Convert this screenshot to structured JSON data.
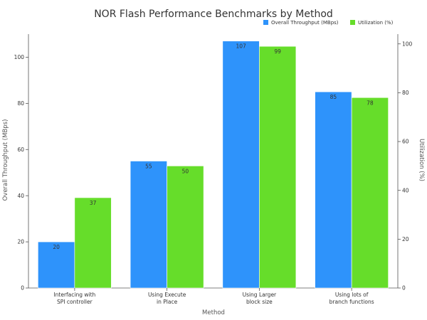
{
  "chart_data": {
    "type": "bar",
    "title": "NOR Flash Performance Benchmarks by Method",
    "xlabel": "Method",
    "ylabel": "Overall Throughput (MBps)",
    "y2label": "Utilization (%)",
    "categories": [
      [
        "Interfacing with",
        "SPI controller"
      ],
      [
        "Using Execute",
        "in Place"
      ],
      [
        "Using Larger",
        "block size"
      ],
      [
        "Using lots of",
        "branch functions"
      ]
    ],
    "series": [
      {
        "name": "Overall Throughput (MBps)",
        "axis": "left",
        "color": "#2e93fb",
        "values": [
          20,
          55,
          107,
          85
        ]
      },
      {
        "name": "Utilization (%)",
        "axis": "right",
        "color": "#66dd2a",
        "values": [
          37,
          50,
          99,
          78
        ]
      }
    ],
    "ylim": [
      0,
      110
    ],
    "y2lim": [
      0,
      104
    ],
    "yticks": [
      0,
      20,
      40,
      60,
      80,
      100
    ],
    "y2ticks": [
      0,
      20,
      40,
      60,
      80,
      100
    ],
    "legend": "top-right",
    "grid": false
  }
}
